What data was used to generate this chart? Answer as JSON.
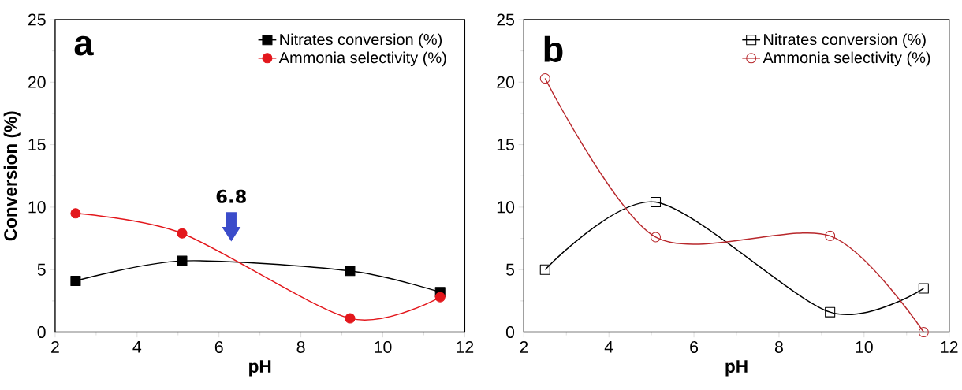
{
  "chart_data": [
    {
      "type": "line",
      "xlabel": "pH",
      "ylabel": "Conversion (%)",
      "x": [
        2.5,
        5.1,
        9.2,
        11.4
      ],
      "xlim": [
        2,
        12
      ],
      "ylim": [
        0,
        25
      ],
      "xticks": [
        2,
        4,
        6,
        8,
        10,
        12
      ],
      "yticks": [
        0,
        5,
        10,
        15,
        20,
        25
      ],
      "legend": "top right",
      "grid": false,
      "line_style": "solid",
      "annotations": [
        "a",
        "6.8"
      ],
      "series": [
        {
          "name": "Nitrates conversion (%)",
          "color": "#000000",
          "marker": "square",
          "values": [
            4.1,
            5.7,
            4.9,
            3.2
          ]
        },
        {
          "name": "Ammonia selectivity (%)",
          "color": "#e3171c",
          "marker": "circle",
          "values": [
            9.5,
            7.9,
            1.1,
            2.8
          ]
        }
      ]
    },
    {
      "type": "line",
      "xlabel": "pH",
      "x": [
        2.5,
        5.1,
        9.2,
        11.4
      ],
      "xlim": [
        2,
        12
      ],
      "ylim": [
        0,
        25
      ],
      "xticks": [
        2,
        4,
        6,
        8,
        10,
        12
      ],
      "yticks": [
        0,
        5,
        10,
        15,
        20,
        25
      ],
      "legend": "top right",
      "grid": false,
      "line_style": "solid",
      "annotations": [
        "b"
      ],
      "series": [
        {
          "name": "Nitrates conversion (%)",
          "color": "#000000",
          "marker": "square",
          "values": [
            5.0,
            10.4,
            1.6,
            3.5
          ]
        },
        {
          "name": "Ammonia selectivity (%)",
          "color": "#b8282c",
          "marker": "circle",
          "values": [
            20.3,
            7.6,
            7.7,
            0
          ]
        }
      ]
    }
  ]
}
